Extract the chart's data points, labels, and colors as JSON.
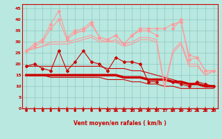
{
  "x": [
    0,
    1,
    2,
    3,
    4,
    5,
    6,
    7,
    8,
    9,
    10,
    11,
    12,
    13,
    14,
    15,
    16,
    17,
    18,
    19,
    20,
    21,
    22,
    23
  ],
  "series": [
    {
      "name": "dark_red_markers",
      "color": "#cc0000",
      "lw": 0.8,
      "marker": "D",
      "ms": 2.0,
      "y": [
        19,
        20,
        18,
        17,
        26,
        17,
        21,
        26,
        21,
        20,
        17,
        23,
        21,
        21,
        20,
        12,
        12,
        null,
        12,
        11,
        10,
        12,
        11,
        10
      ]
    },
    {
      "name": "dark_red_straight_upper",
      "color": "#cc0000",
      "lw": 0.8,
      "marker": null,
      "ms": 0,
      "y": [
        19,
        19,
        19,
        19,
        19,
        19,
        19,
        19,
        19,
        19,
        18,
        18,
        18,
        17,
        17,
        16,
        15,
        14,
        13,
        12,
        11,
        11,
        10,
        10
      ]
    },
    {
      "name": "dark_red_thick",
      "color": "#cc0000",
      "lw": 2.5,
      "marker": null,
      "ms": 0,
      "y": [
        15,
        15,
        15,
        15,
        15,
        15,
        15,
        15,
        15,
        15,
        15,
        15,
        14,
        14,
        14,
        13,
        13,
        13,
        12,
        12,
        11,
        11,
        10,
        10
      ]
    },
    {
      "name": "dark_red_thin_lower",
      "color": "#cc0000",
      "lw": 0.8,
      "marker": null,
      "ms": 0,
      "y": [
        15,
        15,
        15,
        14,
        14,
        14,
        14,
        14,
        14,
        14,
        13,
        13,
        13,
        12,
        12,
        11,
        11,
        10,
        10,
        9,
        9,
        9,
        9,
        9
      ]
    },
    {
      "name": "pink_spiky_upper",
      "color": "#ff9999",
      "lw": 0.8,
      "marker": "D",
      "ms": 2.0,
      "y": [
        26,
        29,
        31,
        38,
        44,
        32,
        35,
        36,
        39,
        32,
        31,
        33,
        29,
        33,
        35,
        35,
        33,
        null,
        36,
        40,
        22,
        23,
        17,
        17
      ]
    },
    {
      "name": "pink_smooth_upper",
      "color": "#ff9999",
      "lw": 0.8,
      "marker": "D",
      "ms": 2.0,
      "y": [
        26,
        28,
        30,
        36,
        40,
        31,
        34,
        35,
        38,
        32,
        31,
        33,
        29,
        33,
        36,
        36,
        36,
        36,
        38,
        39,
        24,
        23,
        17,
        17
      ]
    },
    {
      "name": "pink_lower_smooth",
      "color": "#ff9999",
      "lw": 0.8,
      "marker": null,
      "ms": 0,
      "y": [
        26,
        27,
        28,
        30,
        30,
        30,
        31,
        32,
        33,
        31,
        30,
        31,
        29,
        30,
        32,
        32,
        31,
        10,
        26,
        30,
        20,
        20,
        15,
        17
      ]
    },
    {
      "name": "pink_lowest_smooth",
      "color": "#ff9999",
      "lw": 0.8,
      "marker": null,
      "ms": 0,
      "y": [
        26,
        27,
        28,
        29,
        29,
        29,
        30,
        31,
        32,
        30,
        30,
        30,
        28,
        29,
        31,
        31,
        30,
        9,
        25,
        29,
        19,
        19,
        15,
        17
      ]
    }
  ],
  "wind_arrows": {
    "x": [
      0,
      1,
      2,
      3,
      4,
      5,
      6,
      7,
      8,
      9,
      10,
      11,
      12,
      13,
      14,
      15,
      16,
      17,
      18,
      19,
      20,
      21,
      22,
      23
    ],
    "down": [
      1,
      1,
      1,
      1,
      1,
      1,
      1,
      1,
      1,
      1,
      1,
      1,
      1,
      1,
      1,
      1,
      1,
      0,
      1,
      1,
      1,
      1,
      1,
      1
    ]
  },
  "xlabel": "Vent moyen/en rafales ( km/h )",
  "xlim": [
    -0.5,
    23.5
  ],
  "ylim": [
    0,
    47
  ],
  "yticks": [
    0,
    5,
    10,
    15,
    20,
    25,
    30,
    35,
    40,
    45
  ],
  "xticks": [
    0,
    1,
    2,
    3,
    4,
    5,
    6,
    7,
    8,
    9,
    10,
    11,
    12,
    13,
    14,
    15,
    16,
    17,
    18,
    19,
    20,
    21,
    22,
    23
  ],
  "bg_color": "#b8e8e0",
  "grid_color": "#90c8c0",
  "arrow_color": "#cc0000",
  "text_color": "#cc0000",
  "line_color": "#cc0000"
}
